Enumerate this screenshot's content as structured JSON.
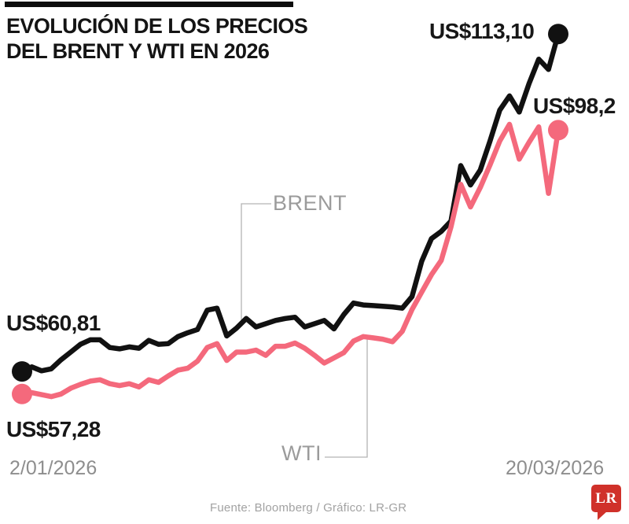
{
  "header": {
    "title": "EVOLUCIÓN DE LOS PRECIOS\nDEL BRENT Y WTI EN 2026"
  },
  "chart_data": {
    "type": "line",
    "title": "Evolución de los precios del Brent y WTI en 2026",
    "ylim": [
      55,
      115
    ],
    "grid": false,
    "x_axis": {
      "start_label": "2/01/2026",
      "end_label": "20/03/2026"
    },
    "series": [
      {
        "name": "BRENT",
        "color": "#111111",
        "start_value": 60.81,
        "end_value": 113.1,
        "start_value_label": "US$60,81",
        "end_value_label": "US$113,10",
        "values": [
          60.8,
          61.5,
          60.9,
          61.2,
          62.6,
          63.8,
          65.0,
          65.7,
          65.7,
          64.5,
          64.3,
          64.6,
          64.4,
          65.6,
          65.0,
          65.1,
          66.2,
          66.8,
          67.3,
          70.3,
          70.6,
          66.3,
          67.5,
          69.0,
          67.7,
          68.2,
          68.7,
          69.0,
          69.2,
          67.7,
          68.2,
          68.7,
          67.4,
          69.6,
          71.4,
          71.1,
          71.0,
          70.9,
          70.8,
          70.6,
          72.4,
          77.9,
          81.4,
          82.5,
          84.1,
          92.7,
          89.7,
          92.0,
          96.5,
          101.3,
          103.5,
          101.0,
          105.4,
          109.2,
          107.6,
          113.1
        ]
      },
      {
        "name": "WTI",
        "color": "#f4697c",
        "start_value": 57.28,
        "end_value": 98.2,
        "start_value_label": "US$57,28",
        "end_value_label": "US$98,2",
        "values": [
          57.3,
          57.5,
          57.2,
          56.9,
          57.3,
          58.2,
          58.8,
          59.3,
          59.5,
          58.9,
          58.6,
          58.9,
          58.4,
          59.5,
          59.1,
          60.1,
          61.0,
          61.3,
          62.4,
          64.5,
          65.1,
          62.5,
          63.8,
          63.8,
          64.1,
          63.3,
          64.7,
          64.7,
          65.2,
          64.4,
          63.3,
          62.1,
          62.9,
          63.7,
          65.5,
          66.2,
          66.0,
          65.8,
          65.4,
          67.0,
          70.4,
          73.1,
          75.8,
          78.0,
          83.2,
          89.8,
          86.3,
          89.3,
          92.8,
          96.5,
          99.1,
          93.7,
          96.3,
          98.7,
          88.4,
          98.2
        ]
      }
    ]
  },
  "footer": {
    "source": "Fuente: Bloomberg / Gráfico: LR-GR",
    "logo_text": "LR",
    "logo_color": "#d0312a"
  }
}
